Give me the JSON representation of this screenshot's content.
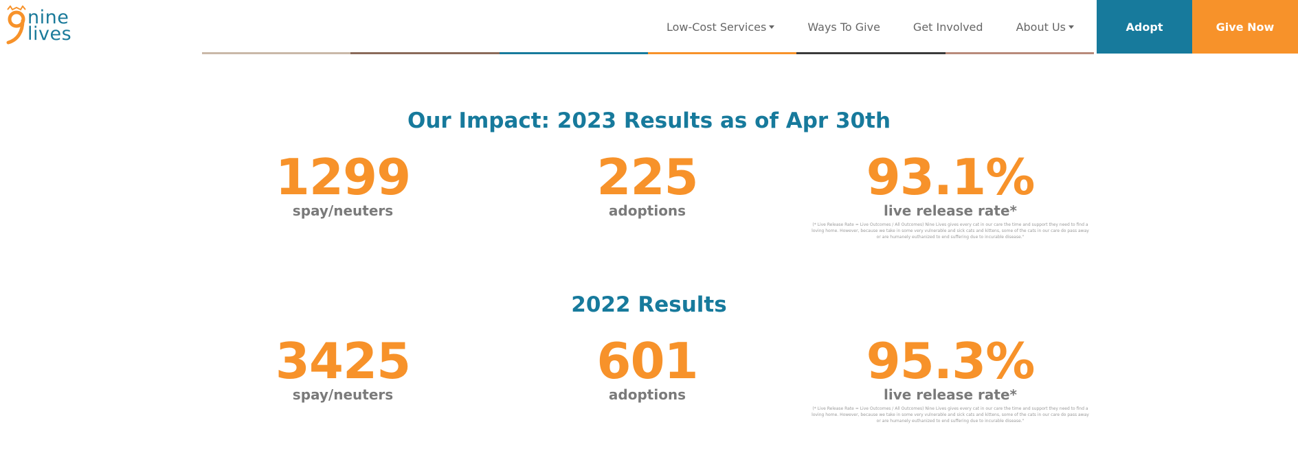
{
  "brand": {
    "logo_line1": "nine",
    "logo_line2": "lives"
  },
  "nav": {
    "items": [
      {
        "label": "Low-Cost Services",
        "dropdown": true
      },
      {
        "label": "Ways To Give",
        "dropdown": false
      },
      {
        "label": "Get Involved",
        "dropdown": false
      },
      {
        "label": "About Us",
        "dropdown": true
      }
    ],
    "adopt_label": "Adopt",
    "give_label": "Give Now"
  },
  "colors": {
    "accent_teal": "#177a9c",
    "accent_orange": "#f7922a",
    "text_gray": "#7a7a7a"
  },
  "sections": [
    {
      "title": "Our Impact: 2023 Results as of Apr 30th",
      "stats": [
        {
          "value": "1299",
          "label": "spay/neuters"
        },
        {
          "value": "225",
          "label": "adoptions"
        },
        {
          "value": "93.1%",
          "label": "live release rate*",
          "footnote": "(* Live Release Rate = Live Outcomes / All Outcomes) Nine Lives gives every cat in our care the time and support they need to find a loving home. However, because we take in some very vulnerable and sick cats and kittens, some of the cats in our care do pass away or are humanely euthanized to end suffering due to incurable disease.\""
        }
      ]
    },
    {
      "title": "2022 Results",
      "stats": [
        {
          "value": "3425",
          "label": "spay/neuters"
        },
        {
          "value": "601",
          "label": "adoptions"
        },
        {
          "value": "95.3%",
          "label": "live release rate*",
          "footnote": "(* Live Release Rate = Live Outcomes / All Outcomes) Nine Lives gives every cat in our care the time and support they need to find a loving home. However, because we take in some very vulnerable and sick cats and kittens, some of the cats in our care do pass away or are humanely euthanized to end suffering due to incurable disease.\""
        }
      ]
    }
  ]
}
